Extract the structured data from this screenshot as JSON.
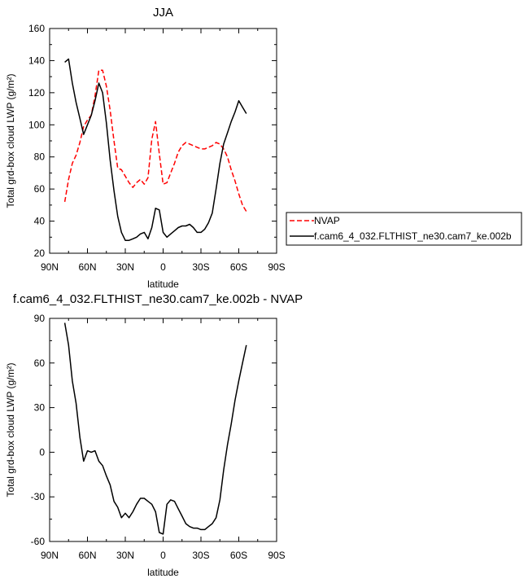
{
  "chart_data": [
    {
      "type": "line",
      "title": "JJA",
      "xlabel": "latitude",
      "ylabel": "Total grd-box cloud LWP (g/m²)",
      "xlim": [
        90,
        -90
      ],
      "ylim": [
        20,
        160
      ],
      "xticks": [
        90,
        60,
        30,
        0,
        -30,
        -60,
        -90
      ],
      "xticklabels": [
        "90N",
        "60N",
        "30N",
        "0",
        "30S",
        "60S",
        "90S"
      ],
      "yticks": [
        20,
        40,
        60,
        80,
        100,
        120,
        140,
        160
      ],
      "yticklabels": [
        "20",
        "40",
        "60",
        "80",
        "100",
        "120",
        "140",
        "160"
      ],
      "legend_position": "right",
      "series": [
        {
          "name": "NVAP",
          "style": "dashed",
          "color": "#ff0000",
          "x": [
            78,
            75,
            72,
            69,
            66,
            63,
            60,
            57,
            54,
            51,
            48,
            45,
            42,
            39,
            36,
            33,
            30,
            27,
            24,
            21,
            18,
            15,
            12,
            9,
            6,
            3,
            0,
            -3,
            -6,
            -9,
            -12,
            -15,
            -18,
            -21,
            -24,
            -27,
            -30,
            -33,
            -36,
            -39,
            -42,
            -45,
            -48,
            -51,
            -54,
            -57,
            -60,
            -63,
            -66
          ],
          "y": [
            52,
            66,
            76,
            81,
            89,
            99,
            103,
            106,
            118,
            134,
            134,
            124,
            109,
            90,
            73,
            72,
            68,
            64,
            61,
            64,
            66,
            63,
            67,
            91,
            102,
            82,
            63,
            64,
            70,
            76,
            83,
            87,
            89,
            88,
            87,
            86,
            85,
            85,
            86,
            87,
            89,
            88,
            85,
            80,
            72,
            65,
            57,
            50,
            46
          ]
        },
        {
          "name": "f.cam6_4_032.FLTHIST_ne30.cam7_ke.002b",
          "style": "solid",
          "color": "#000000",
          "x": [
            78,
            75,
            72,
            69,
            66,
            63,
            60,
            57,
            54,
            51,
            48,
            45,
            42,
            39,
            36,
            33,
            30,
            27,
            24,
            21,
            18,
            15,
            12,
            9,
            6,
            3,
            0,
            -3,
            -6,
            -9,
            -12,
            -15,
            -18,
            -21,
            -24,
            -27,
            -30,
            -33,
            -36,
            -39,
            -42,
            -45,
            -48,
            -51,
            -54,
            -57,
            -60,
            -63,
            -66
          ],
          "y": [
            139,
            141,
            126,
            114,
            104,
            94,
            100,
            106,
            115,
            126,
            120,
            101,
            78,
            59,
            43,
            33,
            28,
            28,
            29,
            30,
            32,
            33,
            29,
            36,
            48,
            47,
            33,
            30,
            32,
            34,
            36,
            37,
            37,
            38,
            36,
            33,
            33,
            35,
            39,
            45,
            60,
            76,
            88,
            95,
            102,
            108,
            115,
            111,
            107
          ]
        }
      ]
    },
    {
      "type": "line",
      "title": "f.cam6_4_032.FLTHIST_ne30.cam7_ke.002b - NVAP",
      "xlabel": "latitude",
      "ylabel": "Total grd-box cloud LWP (g/m²)",
      "xlim": [
        90,
        -90
      ],
      "ylim": [
        -60,
        90
      ],
      "xticks": [
        90,
        60,
        30,
        0,
        -30,
        -60,
        -90
      ],
      "xticklabels": [
        "90N",
        "60N",
        "30N",
        "0",
        "30S",
        "60S",
        "90S"
      ],
      "yticks": [
        -60,
        -30,
        0,
        30,
        60,
        90
      ],
      "yticklabels": [
        "-60",
        "-30",
        "0",
        "30",
        "60",
        "90"
      ],
      "series": [
        {
          "style": "solid",
          "color": "#000000",
          "x": [
            78,
            75,
            72,
            69,
            66,
            63,
            60,
            57,
            54,
            51,
            48,
            45,
            42,
            39,
            36,
            33,
            30,
            27,
            24,
            21,
            18,
            15,
            12,
            9,
            6,
            3,
            0,
            -3,
            -6,
            -9,
            -12,
            -15,
            -18,
            -21,
            -24,
            -27,
            -30,
            -33,
            -36,
            -39,
            -42,
            -45,
            -48,
            -51,
            -54,
            -57,
            -60,
            -63,
            -66
          ],
          "y": [
            87,
            72,
            48,
            33,
            10,
            -6,
            1,
            0,
            1,
            -6,
            -9,
            -16,
            -22,
            -33,
            -37,
            -44,
            -41,
            -44,
            -40,
            -35,
            -31,
            -31,
            -33,
            -35,
            -40,
            -54,
            -55,
            -35,
            -32,
            -33,
            -38,
            -43,
            -48,
            -50,
            -51,
            -51,
            -52,
            -52,
            -50,
            -48,
            -44,
            -32,
            -12,
            5,
            19,
            35,
            48,
            60,
            72
          ]
        }
      ]
    }
  ]
}
